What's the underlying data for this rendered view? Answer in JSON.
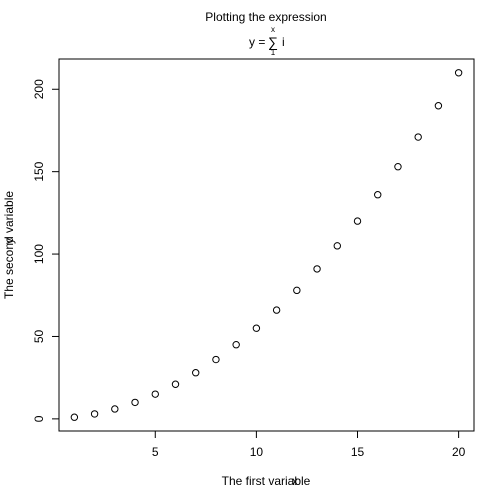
{
  "chart_data": {
    "type": "scatter",
    "title": "Plotting the expression",
    "formula": {
      "lhs": "y = ",
      "sum_symbol": "∑",
      "upper": "x",
      "lower": "1",
      "term": "i"
    },
    "xlabel": "The first variable",
    "ylabel": "The second variable",
    "xlabel_overprint": "x",
    "ylabel_overprint": "y",
    "xlim": [
      0.24,
      20.76
    ],
    "ylim": [
      -7.36,
      218.36
    ],
    "x_ticks": [
      5,
      10,
      15,
      20
    ],
    "y_ticks": [
      0,
      50,
      100,
      150,
      200
    ],
    "x_tick_labels": [
      "5",
      "10",
      "15",
      "20"
    ],
    "y_tick_labels": [
      "0",
      "50",
      "100",
      "150",
      "200"
    ],
    "marker": "open-circle",
    "grid": false,
    "series": [
      {
        "x": [
          1,
          2,
          3,
          4,
          5,
          6,
          7,
          8,
          9,
          10,
          11,
          12,
          13,
          14,
          15,
          16,
          17,
          18,
          19,
          20
        ],
        "y": [
          1,
          3,
          6,
          10,
          15,
          21,
          28,
          36,
          45,
          55,
          66,
          78,
          91,
          105,
          120,
          136,
          153,
          171,
          190,
          210
        ]
      }
    ]
  }
}
